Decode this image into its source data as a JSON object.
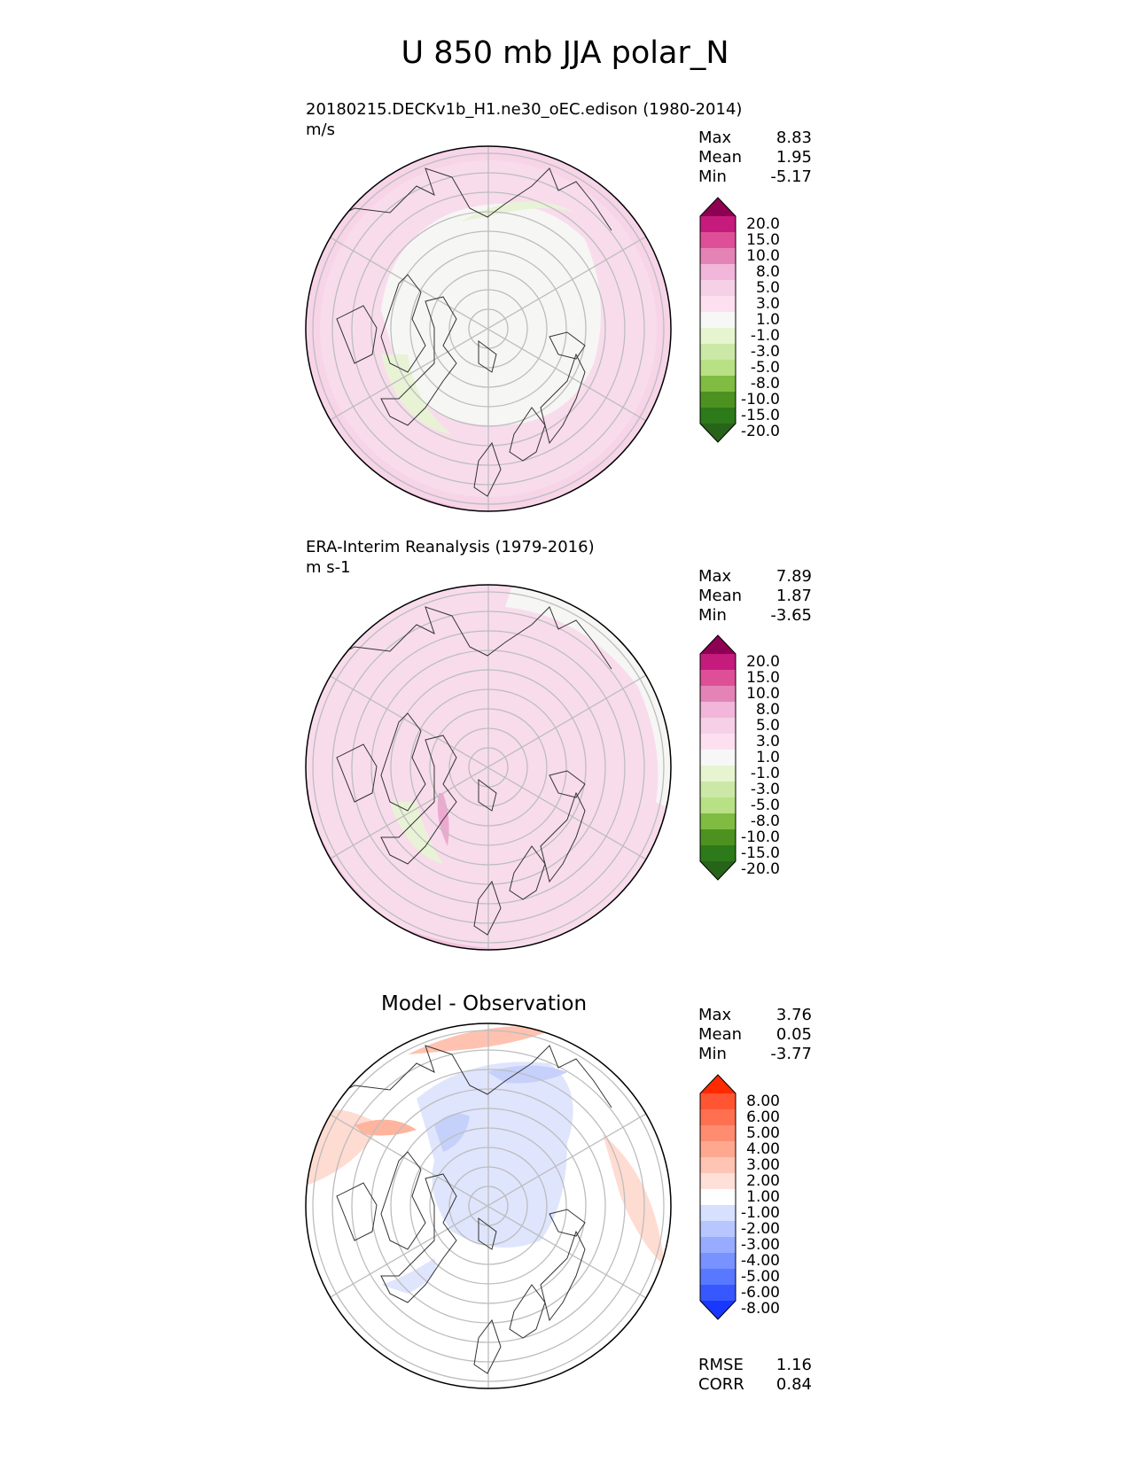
{
  "figure": {
    "title": "U 850 mb JJA polar_N"
  },
  "panels": [
    {
      "id": "model",
      "heading": "20180215.DECKv1b_H1.ne30_oEC.edison (1980-2014)",
      "units": "m/s",
      "stats": [
        {
          "label": "Max",
          "value": "8.83"
        },
        {
          "label": "Mean",
          "value": "1.95"
        },
        {
          "label": "Min",
          "value": "-5.17"
        }
      ],
      "colorbar": {
        "labels": [
          "20.0",
          "15.0",
          "10.0",
          "8.0",
          "5.0",
          "3.0",
          "1.0",
          "-1.0",
          "-3.0",
          "-5.0",
          "-8.0",
          "-10.0",
          "-15.0",
          "-20.0"
        ],
        "colors": [
          "#8e0152",
          "#c51b7d",
          "#de4f98",
          "#e484b6",
          "#f1b6da",
          "#f6d0e6",
          "#fde0ef",
          "#f7f7f7",
          "#e6f5d0",
          "#cce8a6",
          "#b8e186",
          "#7fbc41",
          "#4d9221",
          "#2d7a1a",
          "#276419"
        ]
      }
    },
    {
      "id": "obs",
      "heading": "ERA-Interim Reanalysis (1979-2016)",
      "units": "m s-1",
      "stats": [
        {
          "label": "Max",
          "value": "7.89"
        },
        {
          "label": "Mean",
          "value": "1.87"
        },
        {
          "label": "Min",
          "value": "-3.65"
        }
      ],
      "colorbar": {
        "labels": [
          "20.0",
          "15.0",
          "10.0",
          "8.0",
          "5.0",
          "3.0",
          "1.0",
          "-1.0",
          "-3.0",
          "-5.0",
          "-8.0",
          "-10.0",
          "-15.0",
          "-20.0"
        ],
        "colors": [
          "#8e0152",
          "#c51b7d",
          "#de4f98",
          "#e484b6",
          "#f1b6da",
          "#f6d0e6",
          "#fde0ef",
          "#f7f7f7",
          "#e6f5d0",
          "#cce8a6",
          "#b8e186",
          "#7fbc41",
          "#4d9221",
          "#2d7a1a",
          "#276419"
        ]
      }
    },
    {
      "id": "diff",
      "title": "Model - Observation",
      "stats": [
        {
          "label": "Max",
          "value": "3.76"
        },
        {
          "label": "Mean",
          "value": "0.05"
        },
        {
          "label": "Min",
          "value": "-3.77"
        }
      ],
      "extra_stats": [
        {
          "label": "RMSE",
          "value": "1.16"
        },
        {
          "label": "CORR",
          "value": "0.84"
        }
      ],
      "colorbar": {
        "labels": [
          "8.00",
          "6.00",
          "5.00",
          "4.00",
          "3.00",
          "2.00",
          "1.00",
          "-1.00",
          "-2.00",
          "-3.00",
          "-4.00",
          "-5.00",
          "-6.00",
          "-8.00"
        ],
        "colors": [
          "#ff2a00",
          "#ff5533",
          "#ff7050",
          "#ff8c70",
          "#ffa890",
          "#ffc4b4",
          "#ffe0d8",
          "#ffffff",
          "#d8e0ff",
          "#b8c6ff",
          "#98acff",
          "#7892ff",
          "#5878ff",
          "#3858ff",
          "#1838ff"
        ]
      }
    }
  ]
}
